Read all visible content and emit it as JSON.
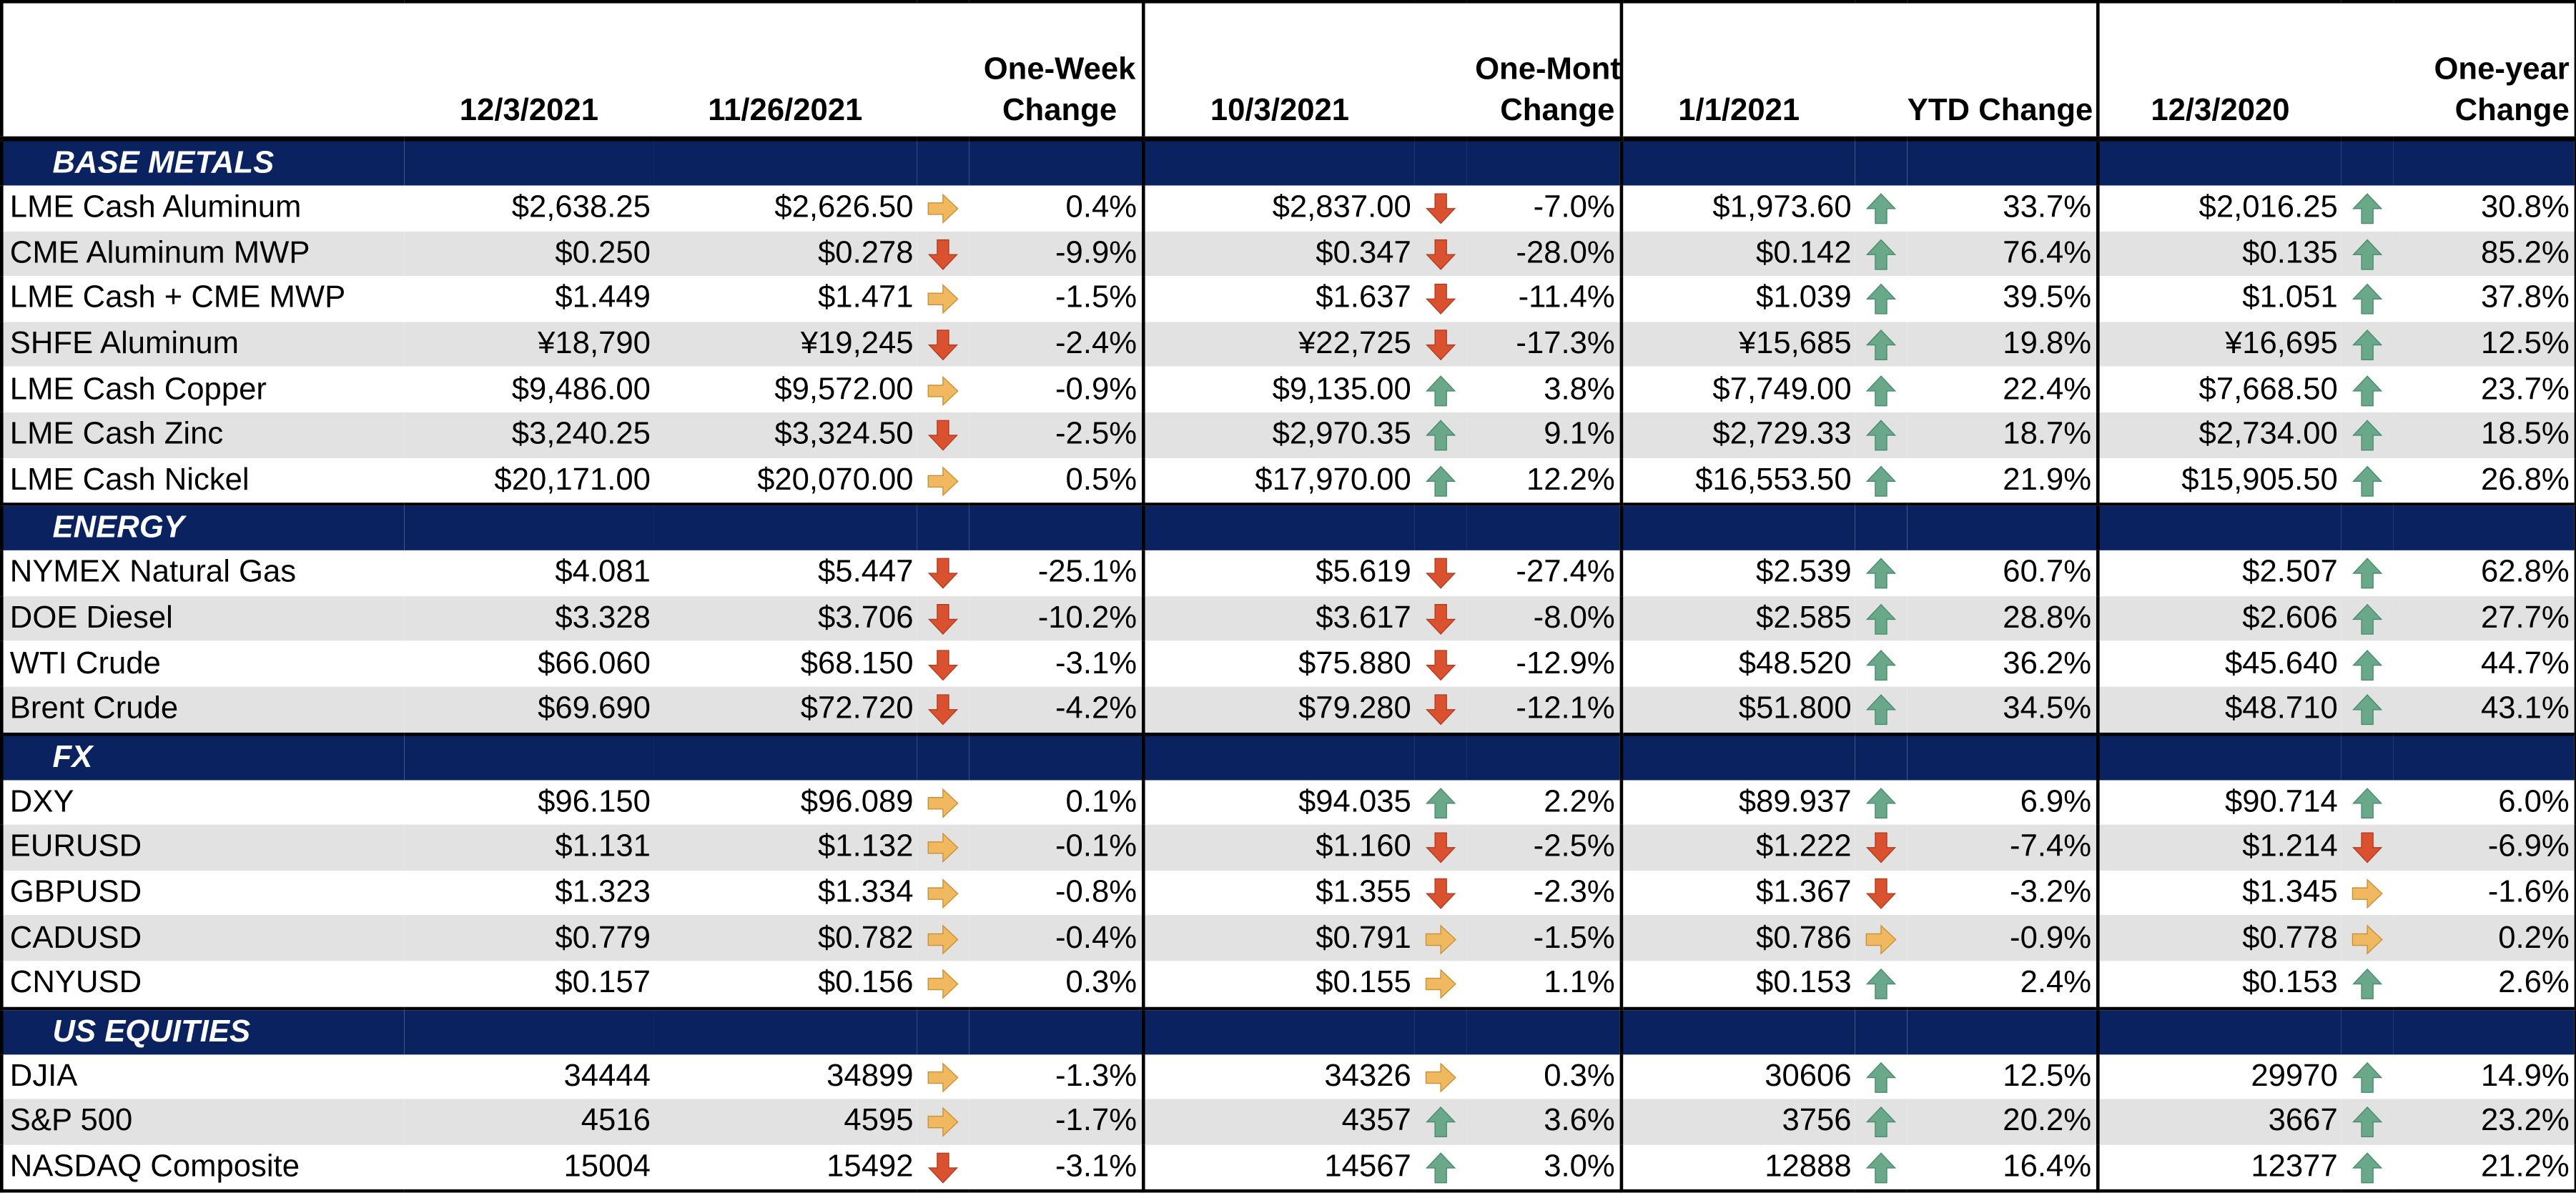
{
  "headers": {
    "name": "",
    "current_date": "12/3/2021",
    "week_date": "11/26/2021",
    "week_change": "One-Week Change",
    "month_date": "10/3/2021",
    "month_change": "One-Month Change",
    "ytd_date": "1/1/2021",
    "ytd_change": "YTD Change",
    "year_date": "12/3/2020",
    "year_change": "One-year Change"
  },
  "colors": {
    "section_bg": "#0b2260",
    "up_arrow": "#6aa88a",
    "down_arrow": "#d9512f",
    "flat_arrow": "#f1b95f",
    "alt_row": "#e2e2e2"
  },
  "sections": [
    {
      "title": "BASE METALS",
      "rows": [
        {
          "name": "LME Cash Aluminum",
          "current": "$2,638.25",
          "week": "$2,626.50",
          "week_dir": "flat",
          "week_chg": "0.4%",
          "month": "$2,837.00",
          "month_dir": "down",
          "month_chg": "-7.0%",
          "ytd": "$1,973.60",
          "ytd_dir": "up",
          "ytd_chg": "33.7%",
          "year": "$2,016.25",
          "year_dir": "up",
          "year_chg": "30.8%"
        },
        {
          "name": "CME Aluminum MWP",
          "current": "$0.250",
          "week": "$0.278",
          "week_dir": "down",
          "week_chg": "-9.9%",
          "month": "$0.347",
          "month_dir": "down",
          "month_chg": "-28.0%",
          "ytd": "$0.142",
          "ytd_dir": "up",
          "ytd_chg": "76.4%",
          "year": "$0.135",
          "year_dir": "up",
          "year_chg": "85.2%"
        },
        {
          "name": "LME Cash + CME MWP",
          "current": "$1.449",
          "week": "$1.471",
          "week_dir": "flat",
          "week_chg": "-1.5%",
          "month": "$1.637",
          "month_dir": "down",
          "month_chg": "-11.4%",
          "ytd": "$1.039",
          "ytd_dir": "up",
          "ytd_chg": "39.5%",
          "year": "$1.051",
          "year_dir": "up",
          "year_chg": "37.8%"
        },
        {
          "name": "SHFE Aluminum",
          "current": "¥18,790",
          "week": "¥19,245",
          "week_dir": "down",
          "week_chg": "-2.4%",
          "month": "¥22,725",
          "month_dir": "down",
          "month_chg": "-17.3%",
          "ytd": "¥15,685",
          "ytd_dir": "up",
          "ytd_chg": "19.8%",
          "year": "¥16,695",
          "year_dir": "up",
          "year_chg": "12.5%"
        },
        {
          "name": "LME Cash Copper",
          "current": "$9,486.00",
          "week": "$9,572.00",
          "week_dir": "flat",
          "week_chg": "-0.9%",
          "month": "$9,135.00",
          "month_dir": "up",
          "month_chg": "3.8%",
          "ytd": "$7,749.00",
          "ytd_dir": "up",
          "ytd_chg": "22.4%",
          "year": "$7,668.50",
          "year_dir": "up",
          "year_chg": "23.7%"
        },
        {
          "name": "LME Cash Zinc",
          "current": "$3,240.25",
          "week": "$3,324.50",
          "week_dir": "down",
          "week_chg": "-2.5%",
          "month": "$2,970.35",
          "month_dir": "up",
          "month_chg": "9.1%",
          "ytd": "$2,729.33",
          "ytd_dir": "up",
          "ytd_chg": "18.7%",
          "year": "$2,734.00",
          "year_dir": "up",
          "year_chg": "18.5%"
        },
        {
          "name": "LME Cash Nickel",
          "current": "$20,171.00",
          "week": "$20,070.00",
          "week_dir": "flat",
          "week_chg": "0.5%",
          "month": "$17,970.00",
          "month_dir": "up",
          "month_chg": "12.2%",
          "ytd": "$16,553.50",
          "ytd_dir": "up",
          "ytd_chg": "21.9%",
          "year": "$15,905.50",
          "year_dir": "up",
          "year_chg": "26.8%"
        }
      ]
    },
    {
      "title": "ENERGY",
      "rows": [
        {
          "name": "NYMEX Natural Gas",
          "current": "$4.081",
          "week": "$5.447",
          "week_dir": "down",
          "week_chg": "-25.1%",
          "month": "$5.619",
          "month_dir": "down",
          "month_chg": "-27.4%",
          "ytd": "$2.539",
          "ytd_dir": "up",
          "ytd_chg": "60.7%",
          "year": "$2.507",
          "year_dir": "up",
          "year_chg": "62.8%"
        },
        {
          "name": "DOE Diesel",
          "current": "$3.328",
          "week": "$3.706",
          "week_dir": "down",
          "week_chg": "-10.2%",
          "month": "$3.617",
          "month_dir": "down",
          "month_chg": "-8.0%",
          "ytd": "$2.585",
          "ytd_dir": "up",
          "ytd_chg": "28.8%",
          "year": "$2.606",
          "year_dir": "up",
          "year_chg": "27.7%"
        },
        {
          "name": "WTI Crude",
          "current": "$66.060",
          "week": "$68.150",
          "week_dir": "down",
          "week_chg": "-3.1%",
          "month": "$75.880",
          "month_dir": "down",
          "month_chg": "-12.9%",
          "ytd": "$48.520",
          "ytd_dir": "up",
          "ytd_chg": "36.2%",
          "year": "$45.640",
          "year_dir": "up",
          "year_chg": "44.7%"
        },
        {
          "name": "Brent Crude",
          "current": "$69.690",
          "week": "$72.720",
          "week_dir": "down",
          "week_chg": "-4.2%",
          "month": "$79.280",
          "month_dir": "down",
          "month_chg": "-12.1%",
          "ytd": "$51.800",
          "ytd_dir": "up",
          "ytd_chg": "34.5%",
          "year": "$48.710",
          "year_dir": "up",
          "year_chg": "43.1%"
        }
      ]
    },
    {
      "title": "FX",
      "rows": [
        {
          "name": "DXY",
          "current": "$96.150",
          "week": "$96.089",
          "week_dir": "flat",
          "week_chg": "0.1%",
          "month": "$94.035",
          "month_dir": "up",
          "month_chg": "2.2%",
          "ytd": "$89.937",
          "ytd_dir": "up",
          "ytd_chg": "6.9%",
          "year": "$90.714",
          "year_dir": "up",
          "year_chg": "6.0%"
        },
        {
          "name": "EURUSD",
          "current": "$1.131",
          "week": "$1.132",
          "week_dir": "flat",
          "week_chg": "-0.1%",
          "month": "$1.160",
          "month_dir": "down",
          "month_chg": "-2.5%",
          "ytd": "$1.222",
          "ytd_dir": "down",
          "ytd_chg": "-7.4%",
          "year": "$1.214",
          "year_dir": "down",
          "year_chg": "-6.9%"
        },
        {
          "name": "GBPUSD",
          "current": "$1.323",
          "week": "$1.334",
          "week_dir": "flat",
          "week_chg": "-0.8%",
          "month": "$1.355",
          "month_dir": "down",
          "month_chg": "-2.3%",
          "ytd": "$1.367",
          "ytd_dir": "down",
          "ytd_chg": "-3.2%",
          "year": "$1.345",
          "year_dir": "flat",
          "year_chg": "-1.6%"
        },
        {
          "name": "CADUSD",
          "current": "$0.779",
          "week": "$0.782",
          "week_dir": "flat",
          "week_chg": "-0.4%",
          "month": "$0.791",
          "month_dir": "flat",
          "month_chg": "-1.5%",
          "ytd": "$0.786",
          "ytd_dir": "flat",
          "ytd_chg": "-0.9%",
          "year": "$0.778",
          "year_dir": "flat",
          "year_chg": "0.2%"
        },
        {
          "name": "CNYUSD",
          "current": "$0.157",
          "week": "$0.156",
          "week_dir": "flat",
          "week_chg": "0.3%",
          "month": "$0.155",
          "month_dir": "flat",
          "month_chg": "1.1%",
          "ytd": "$0.153",
          "ytd_dir": "up",
          "ytd_chg": "2.4%",
          "year": "$0.153",
          "year_dir": "up",
          "year_chg": "2.6%"
        }
      ]
    },
    {
      "title": "US EQUITIES",
      "rows": [
        {
          "name": "DJIA",
          "current": "34444",
          "week": "34899",
          "week_dir": "flat",
          "week_chg": "-1.3%",
          "month": "34326",
          "month_dir": "flat",
          "month_chg": "0.3%",
          "ytd": "30606",
          "ytd_dir": "up",
          "ytd_chg": "12.5%",
          "year": "29970",
          "year_dir": "up",
          "year_chg": "14.9%"
        },
        {
          "name": "S&P 500",
          "current": "4516",
          "week": "4595",
          "week_dir": "flat",
          "week_chg": "-1.7%",
          "month": "4357",
          "month_dir": "up",
          "month_chg": "3.6%",
          "ytd": "3756",
          "ytd_dir": "up",
          "ytd_chg": "20.2%",
          "year": "3667",
          "year_dir": "up",
          "year_chg": "23.2%"
        },
        {
          "name": "NASDAQ Composite",
          "current": "15004",
          "week": "15492",
          "week_dir": "down",
          "week_chg": "-3.1%",
          "month": "14567",
          "month_dir": "up",
          "month_chg": "3.0%",
          "ytd": "12888",
          "ytd_dir": "up",
          "ytd_chg": "16.4%",
          "year": "12377",
          "year_dir": "up",
          "year_chg": "21.2%"
        }
      ]
    }
  ]
}
